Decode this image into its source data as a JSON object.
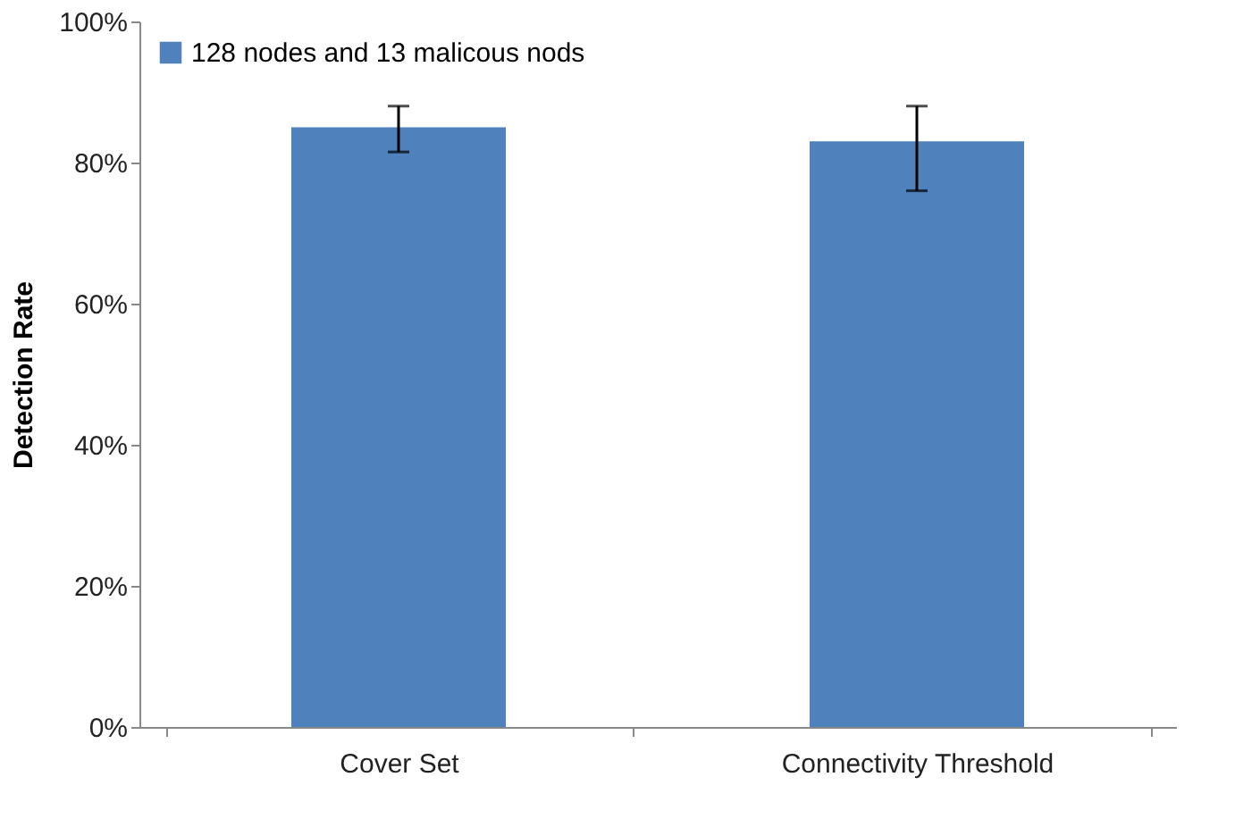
{
  "chart_data": {
    "type": "bar",
    "ylabel": "Detection Rate",
    "categories": [
      "Cover Set",
      "Connectivity Threshold"
    ],
    "series": [
      {
        "name": "128 nodes and  13 malicous nods",
        "color": "#4f81bd",
        "values": [
          85,
          83
        ],
        "errors": [
          [
            81.5,
            88
          ],
          [
            76,
            88
          ]
        ]
      }
    ],
    "ylim": [
      0,
      100
    ],
    "yticks": [
      {
        "value": 0,
        "label": "0%"
      },
      {
        "value": 20,
        "label": "20%"
      },
      {
        "value": 40,
        "label": "40%"
      },
      {
        "value": 60,
        "label": "60%"
      },
      {
        "value": 80,
        "label": "80%"
      },
      {
        "value": 100,
        "label": "100%"
      }
    ],
    "grid": false,
    "legend": "top left"
  }
}
